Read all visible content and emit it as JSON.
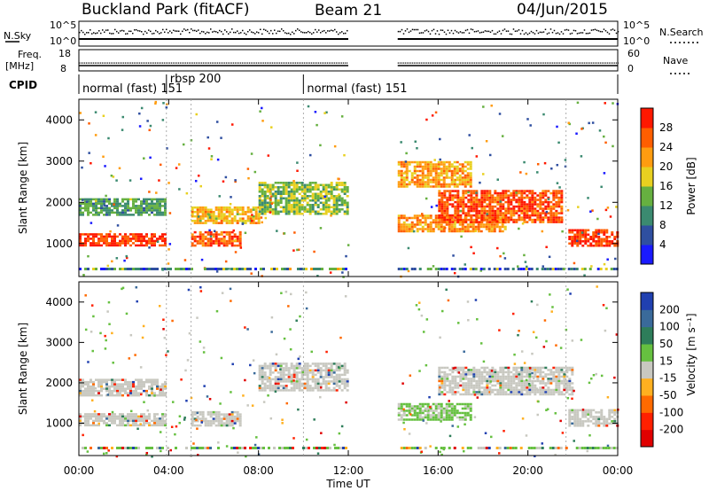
{
  "header": {
    "station": "Buckland Park (fitACF)",
    "beam": "Beam 21",
    "date": "04/Jun/2015"
  },
  "status_panel": {
    "nsky_label": "N.Sky",
    "nsearch_label": "N.Search",
    "freq_label_1": "Freq.",
    "freq_label_2": "[MHz]",
    "nave_label": "Nave",
    "cpid_label": "CPID",
    "noise_ticks_left": [
      "10^5",
      "10^0"
    ],
    "noise_ticks_right": [
      "10^5",
      "10^0"
    ],
    "freq_ticks": [
      "18",
      "8"
    ],
    "nave_ticks": [
      "60",
      "0"
    ],
    "cpid_segments": [
      {
        "start_h": 0.0,
        "end_h": 3.9,
        "label": "normal (fast) 151"
      },
      {
        "start_h": 3.9,
        "end_h": 10.0,
        "label": "rbsp 200"
      },
      {
        "start_h": 10.0,
        "end_h": 24.0,
        "label": "normal (fast) 151"
      }
    ]
  },
  "time_axis": {
    "xlabel": "Time UT",
    "ticks": [
      "00:00",
      "04:00",
      "08:00",
      "12:00",
      "16:00",
      "20:00",
      "00:00"
    ]
  },
  "chart_data": [
    {
      "type": "heatmap",
      "quantity": "power",
      "ylabel": "Slant Range [km]",
      "yticks": [
        "1000",
        "2000",
        "3000",
        "4000"
      ],
      "ylim": [
        200,
        4500
      ],
      "xlim_hours": [
        0,
        24
      ],
      "data_gap_hours": [
        12.0,
        14.2
      ],
      "colorbar": {
        "label": "Power [dB]",
        "ticks": [
          "4",
          "8",
          "12",
          "16",
          "20",
          "24",
          "28"
        ],
        "colors": [
          "#1a1aff",
          "#2f4fa0",
          "#3b8a70",
          "#66b040",
          "#e8d020",
          "#ff9c10",
          "#ff5e00",
          "#ff1800"
        ]
      },
      "echo_bands": [
        {
          "start_h": 0.0,
          "end_h": 3.8,
          "range_km": [
            950,
            1250
          ],
          "level": 0.95
        },
        {
          "start_h": 0.0,
          "end_h": 3.8,
          "range_km": [
            1700,
            2100
          ],
          "level": 0.35
        },
        {
          "start_h": 5.0,
          "end_h": 7.2,
          "range_km": [
            950,
            1300
          ],
          "level": 0.9
        },
        {
          "start_h": 5.0,
          "end_h": 8.0,
          "range_km": [
            1500,
            1900
          ],
          "level": 0.65
        },
        {
          "start_h": 8.0,
          "end_h": 12.0,
          "range_km": [
            1700,
            2500
          ],
          "level": 0.45
        },
        {
          "start_h": 14.2,
          "end_h": 17.5,
          "range_km": [
            2400,
            3000
          ],
          "level": 0.7
        },
        {
          "start_h": 14.2,
          "end_h": 19.0,
          "range_km": [
            1300,
            1700
          ],
          "level": 0.75
        },
        {
          "start_h": 16.0,
          "end_h": 21.5,
          "range_km": [
            1500,
            2300
          ],
          "level": 0.9
        },
        {
          "start_h": 21.8,
          "end_h": 24.0,
          "range_km": [
            950,
            1350
          ],
          "level": 0.95
        }
      ]
    },
    {
      "type": "heatmap",
      "quantity": "velocity",
      "ylabel": "Slant Range [km]",
      "yticks": [
        "1000",
        "2000",
        "3000",
        "4000"
      ],
      "ylim": [
        200,
        4500
      ],
      "xlim_hours": [
        0,
        24
      ],
      "data_gap_hours": [
        12.0,
        14.2
      ],
      "colorbar": {
        "label": "Velocity [m s⁻¹]",
        "ticks": [
          "200",
          "100",
          "50",
          "15",
          "-15",
          "-50",
          "-100",
          "-200"
        ],
        "colors": [
          "#2040b0",
          "#3a6a9a",
          "#2e7d5a",
          "#66c040",
          "#c8c8c0",
          "#ffb020",
          "#ff6a00",
          "#ff2000",
          "#e00000"
        ]
      },
      "echo_bands": [
        {
          "start_h": 0.0,
          "end_h": 3.8,
          "range_km": [
            950,
            1250
          ],
          "level": 0.5
        },
        {
          "start_h": 0.0,
          "end_h": 3.8,
          "range_km": [
            1700,
            2100
          ],
          "level": 0.5
        },
        {
          "start_h": 5.0,
          "end_h": 7.2,
          "range_km": [
            950,
            1300
          ],
          "level": 0.5
        },
        {
          "start_h": 8.0,
          "end_h": 12.0,
          "range_km": [
            1800,
            2500
          ],
          "level": 0.5
        },
        {
          "start_h": 14.2,
          "end_h": 17.5,
          "range_km": [
            1100,
            1500
          ],
          "level": 0.2
        },
        {
          "start_h": 16.0,
          "end_h": 22.0,
          "range_km": [
            1700,
            2400
          ],
          "level": 0.5
        },
        {
          "start_h": 21.8,
          "end_h": 24.0,
          "range_km": [
            950,
            1350
          ],
          "level": 0.5
        }
      ]
    }
  ]
}
